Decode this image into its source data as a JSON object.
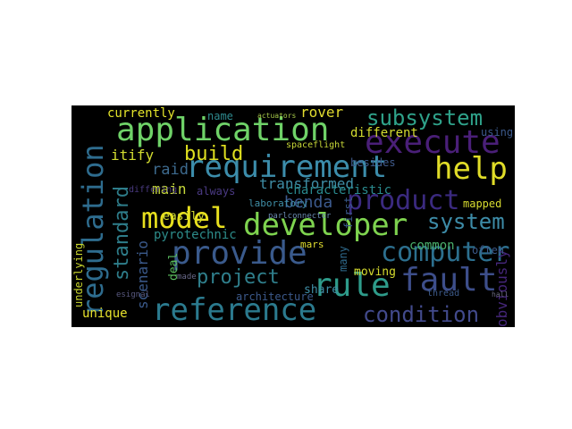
{
  "colors": {
    "background": "#000000",
    "page": "#ffffff"
  },
  "words": {
    "application": "application",
    "requirement": "requirement",
    "developer": "developer",
    "execute": "execute",
    "reference": "reference",
    "provide": "provide",
    "fault": "fault",
    "rule": "rule",
    "regulation": "regulation",
    "model": "model",
    "computer": "computer",
    "product": "product",
    "help": "help",
    "subsystem": "subsystem",
    "system": "system",
    "standard": "standard",
    "condition": "condition",
    "project": "project",
    "build": "build",
    "scenario": "scenario",
    "benda": "benda",
    "main": "main",
    "raid": "raid",
    "itify": "itify",
    "currently": "currently",
    "rover": "rover",
    "transformed": "transformed",
    "different": "different",
    "characteristic": "characteristic",
    "pyrotechnic": "pyrotechnic",
    "unique": "unique",
    "mapped": "mapped",
    "obviously": "obviously",
    "underlying": "underlying",
    "architecture": "architecture",
    "share": "share",
    "moving": "moving",
    "common": "common",
    "often": "often",
    "easily": "easily",
    "always": "always",
    "laboratory": "laboratory",
    "name": "name",
    "using": "using",
    "besides": "besides",
    "many": "many",
    "mars": "mars",
    "first": "first",
    "deal": "deal",
    "made": "made",
    "differing": "differing",
    "actuators": "actuators",
    "spaceflight": "spaceflight",
    "parlconnector": "parlconnector",
    "thread": "thread",
    "hall": "hall",
    "esignal": "esignal"
  }
}
